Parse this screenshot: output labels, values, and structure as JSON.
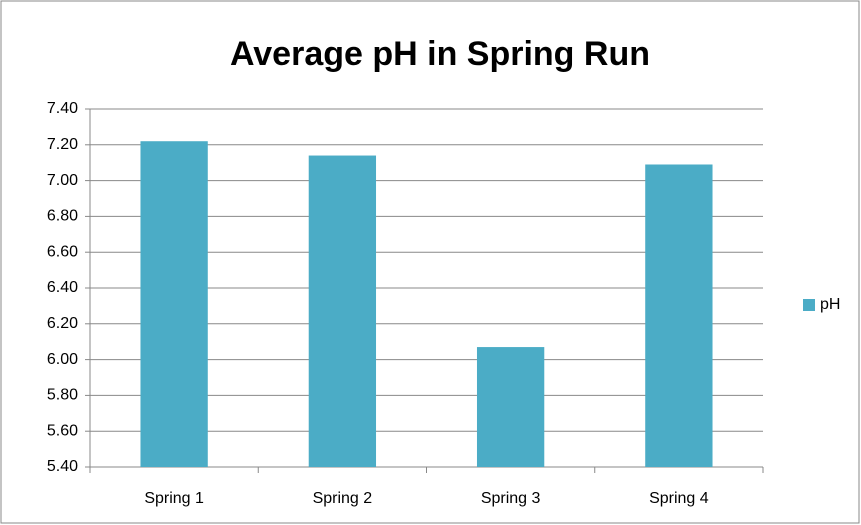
{
  "chart_data": {
    "type": "bar",
    "title": "Average pH in Spring Run",
    "categories": [
      "Spring 1",
      "Spring 2",
      "Spring 3",
      "Spring 4"
    ],
    "series": [
      {
        "name": "pH",
        "color": "#4bacc6",
        "values": [
          7.22,
          7.14,
          6.07,
          7.09
        ]
      }
    ],
    "ylim": [
      5.4,
      7.4
    ],
    "yticks": [
      {
        "value": 5.4,
        "label": "5.40"
      },
      {
        "value": 5.6,
        "label": "5.60"
      },
      {
        "value": 5.8,
        "label": "5.80"
      },
      {
        "value": 6.0,
        "label": "6.00"
      },
      {
        "value": 6.2,
        "label": "6.20"
      },
      {
        "value": 6.4,
        "label": "6.40"
      },
      {
        "value": 6.6,
        "label": "6.60"
      },
      {
        "value": 6.8,
        "label": "6.80"
      },
      {
        "value": 7.0,
        "label": "7.00"
      },
      {
        "value": 7.2,
        "label": "7.20"
      },
      {
        "value": 7.4,
        "label": "7.40"
      }
    ],
    "grid": true,
    "legend": "right"
  }
}
